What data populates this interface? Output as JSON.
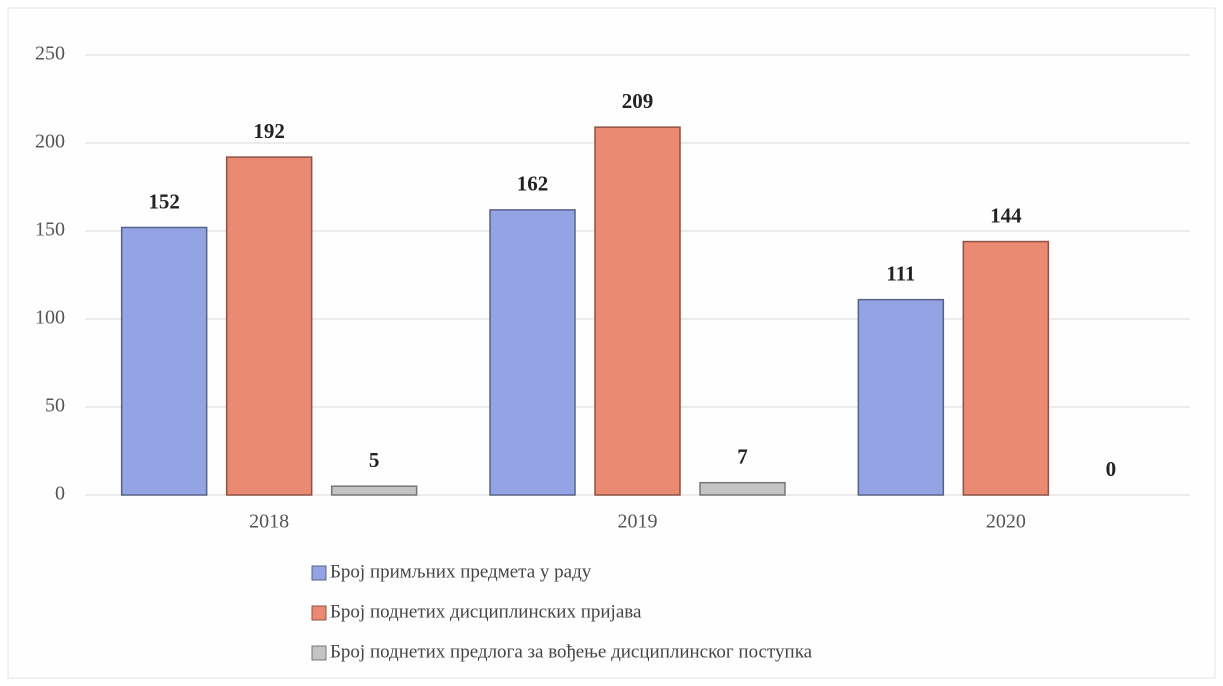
{
  "chart_data": {
    "type": "bar",
    "categories": [
      "2018",
      "2019",
      "2020"
    ],
    "series": [
      {
        "name": "Број примљних предмета у раду",
        "color": "#93a3e3",
        "values": [
          152,
          162,
          111
        ]
      },
      {
        "name": "Број поднетих дисциплинских пријава",
        "color": "#ea8a73",
        "values": [
          192,
          209,
          144
        ]
      },
      {
        "name": "Број поднетих предлога за вођење дисциплинског поступка",
        "color": "#c4c4c4",
        "values": [
          5,
          7,
          0
        ]
      }
    ],
    "ylim": [
      0,
      250
    ],
    "yticks": [
      0,
      50,
      100,
      150,
      200,
      250
    ],
    "grid": true,
    "legend": "bottom",
    "data_labels": true
  }
}
